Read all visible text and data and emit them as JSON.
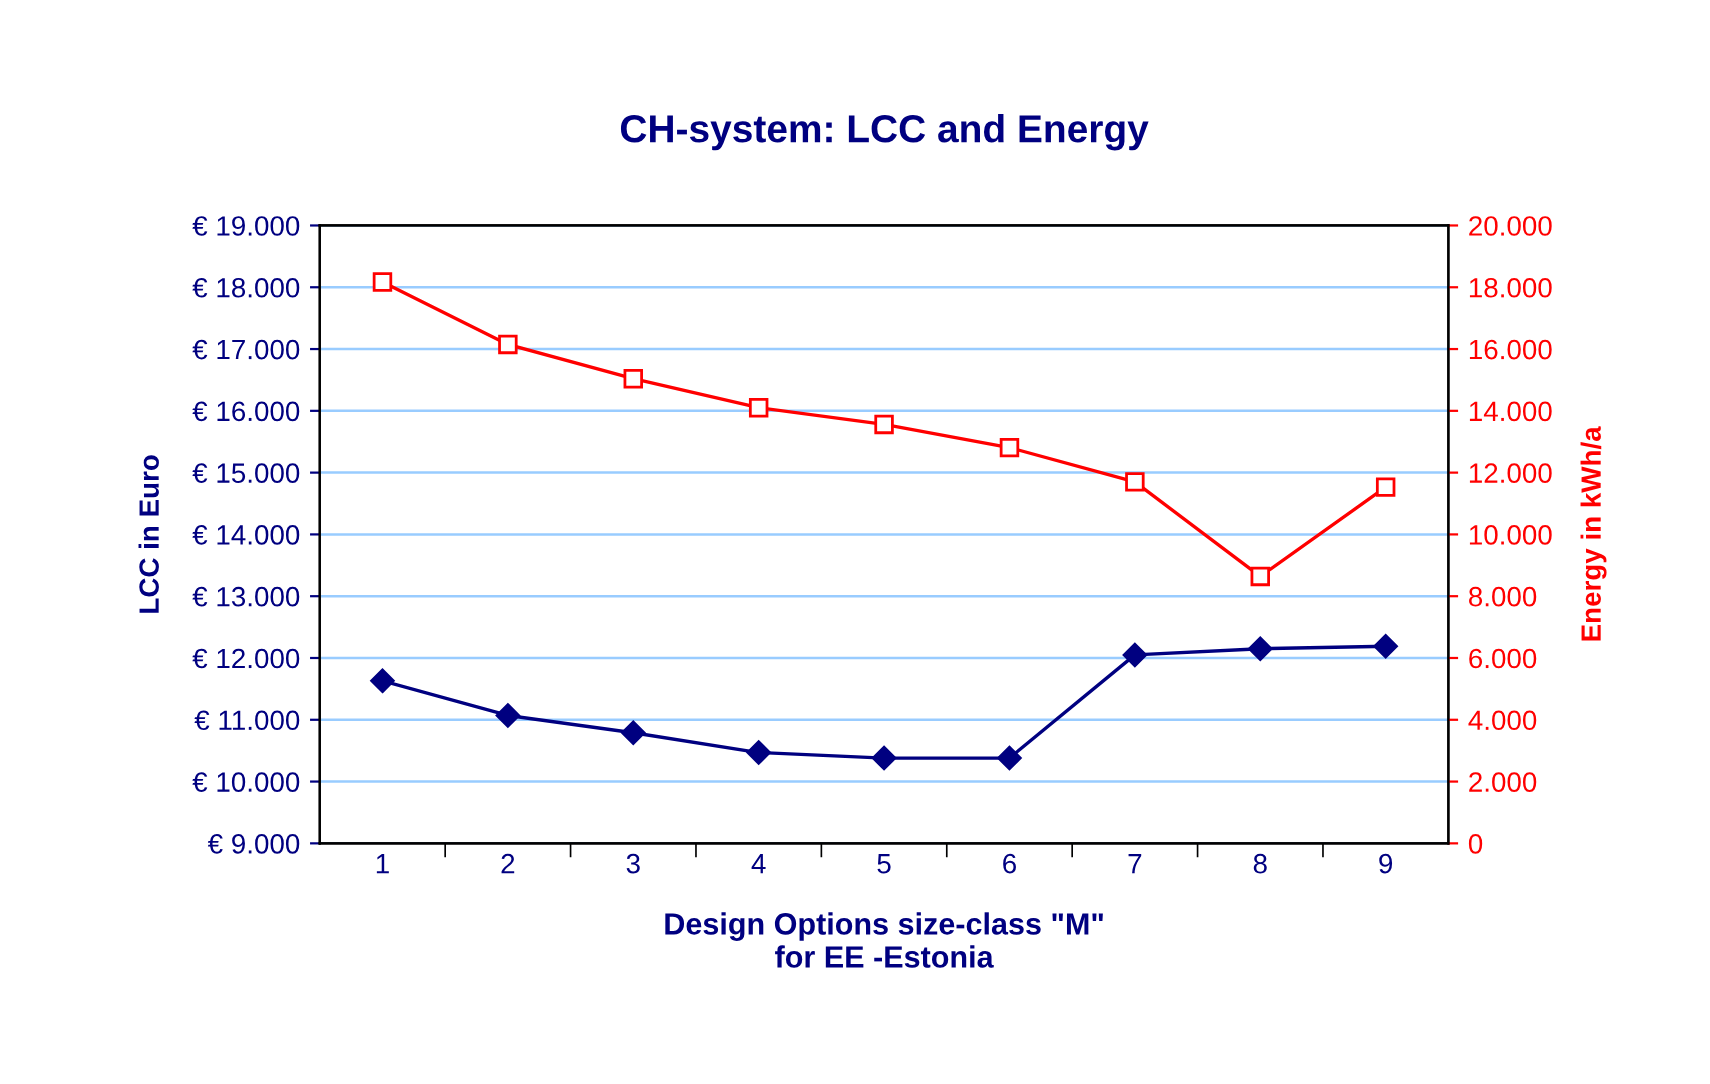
{
  "chart_data": {
    "type": "line",
    "title": "CH-system: LCC and Energy",
    "xlabel": "Design Options size-class \"M\"\nfor EE -Estonia",
    "ylabel": "LCC in Euro",
    "y2label": "Energy in kWh/a",
    "categories": [
      "1",
      "2",
      "3",
      "4",
      "5",
      "6",
      "7",
      "8",
      "9"
    ],
    "series": [
      {
        "color": "#000080",
        "marker": "diamond",
        "values": [
          11630,
          11070,
          10790,
          10470,
          10380,
          10380,
          12050,
          12150,
          12190
        ]
      },
      {
        "color": "#ff0000",
        "marker": "square",
        "axis": "y2",
        "values": [
          18170,
          16150,
          15040,
          14100,
          13560,
          12810,
          11700,
          8640,
          11530
        ]
      }
    ],
    "ylim": [
      9000,
      19000
    ],
    "yticks": [
      {
        "value": 9000,
        "label": "€ 9.000"
      },
      {
        "value": 10000,
        "label": "€ 10.000"
      },
      {
        "value": 11000,
        "label": "€ 11.000"
      },
      {
        "value": 12000,
        "label": "€ 12.000"
      },
      {
        "value": 13000,
        "label": "€ 13.000"
      },
      {
        "value": 14000,
        "label": "€ 14.000"
      },
      {
        "value": 15000,
        "label": "€ 15.000"
      },
      {
        "value": 16000,
        "label": "€ 16.000"
      },
      {
        "value": 17000,
        "label": "€ 17.000"
      },
      {
        "value": 18000,
        "label": "€ 18.000"
      },
      {
        "value": 19000,
        "label": "€ 19.000"
      }
    ],
    "y2lim": [
      0,
      20000
    ],
    "y2ticks": [
      0,
      {
        "value": 2000,
        "label": "2.000"
      },
      {
        "value": 4000,
        "label": "4.000"
      },
      {
        "value": 6000,
        "label": "6.000"
      },
      {
        "value": 8000,
        "label": "8.000"
      },
      {
        "value": 10000,
        "label": "10.000"
      },
      {
        "value": 12000,
        "label": "12.000"
      },
      {
        "value": 14000,
        "label": "14.000"
      },
      {
        "value": 16000,
        "label": "16.000"
      },
      {
        "value": 18000,
        "label": "18.000"
      },
      {
        "value": 20000,
        "label": "20.000"
      }
    ],
    "grid": "y",
    "legend": false
  }
}
